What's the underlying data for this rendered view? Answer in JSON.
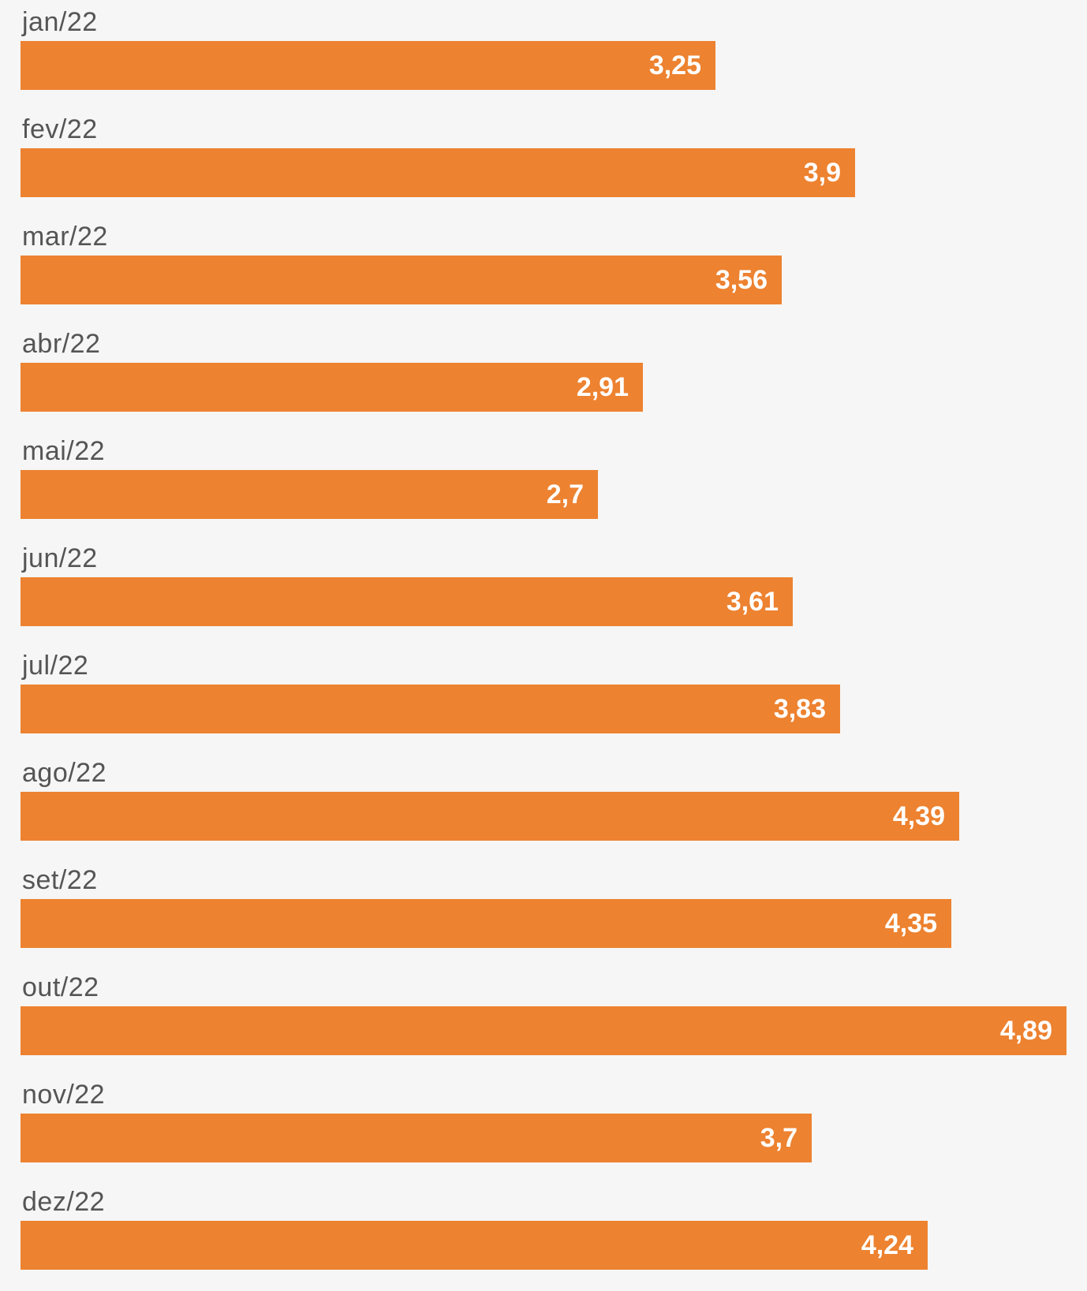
{
  "colors": {
    "bar": "#ed8230",
    "background": "#f6f6f6",
    "label": "#555555",
    "value": "#ffffff"
  },
  "chart_data": {
    "type": "bar",
    "orientation": "horizontal",
    "title": "",
    "xlabel": "",
    "ylabel": "",
    "grid": false,
    "categories": [
      "jan/22",
      "fev/22",
      "mar/22",
      "abr/22",
      "mai/22",
      "jun/22",
      "jul/22",
      "ago/22",
      "set/22",
      "out/22",
      "nov/22",
      "dez/22"
    ],
    "values": [
      3.25,
      3.9,
      3.56,
      2.91,
      2.7,
      3.61,
      3.83,
      4.39,
      4.35,
      4.89,
      3.7,
      4.24
    ],
    "value_labels": [
      "3,25",
      "3,9",
      "3,56",
      "2,91",
      "2,7",
      "3,61",
      "3,83",
      "4,39",
      "4,35",
      "4,89",
      "3,7",
      "4,24"
    ],
    "xlim": [
      0,
      4.89
    ]
  }
}
